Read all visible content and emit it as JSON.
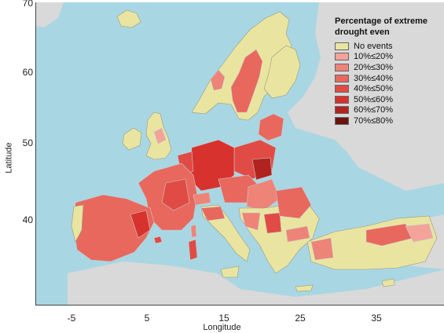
{
  "axes": {
    "y_ticks": [
      "70",
      "60",
      "50",
      "40"
    ],
    "x_ticks": [
      "-5",
      "5",
      "15",
      "25",
      "35"
    ],
    "xlabel": "Longitude",
    "ylabel": "Latitude"
  },
  "legend": {
    "title": "Percentage of extreme drought even",
    "items": [
      {
        "label": "No events",
        "color": "#e9e5a0"
      },
      {
        "label": "10%≤20%",
        "color": "#f4a39b"
      },
      {
        "label": "20%≤30%",
        "color": "#ee8378"
      },
      {
        "label": "30%≤40%",
        "color": "#e8685e"
      },
      {
        "label": "40%≤50%",
        "color": "#e14b45"
      },
      {
        "label": "50%≤60%",
        "color": "#d8322e"
      },
      {
        "label": "60%≤70%",
        "color": "#b1231f"
      },
      {
        "label": "70%≤80%",
        "color": "#6a1410"
      }
    ]
  },
  "colors": {
    "sea": "#a9d6e3",
    "non_study_land": "#d9d9d9",
    "no_events": "#e9e5a0"
  }
}
